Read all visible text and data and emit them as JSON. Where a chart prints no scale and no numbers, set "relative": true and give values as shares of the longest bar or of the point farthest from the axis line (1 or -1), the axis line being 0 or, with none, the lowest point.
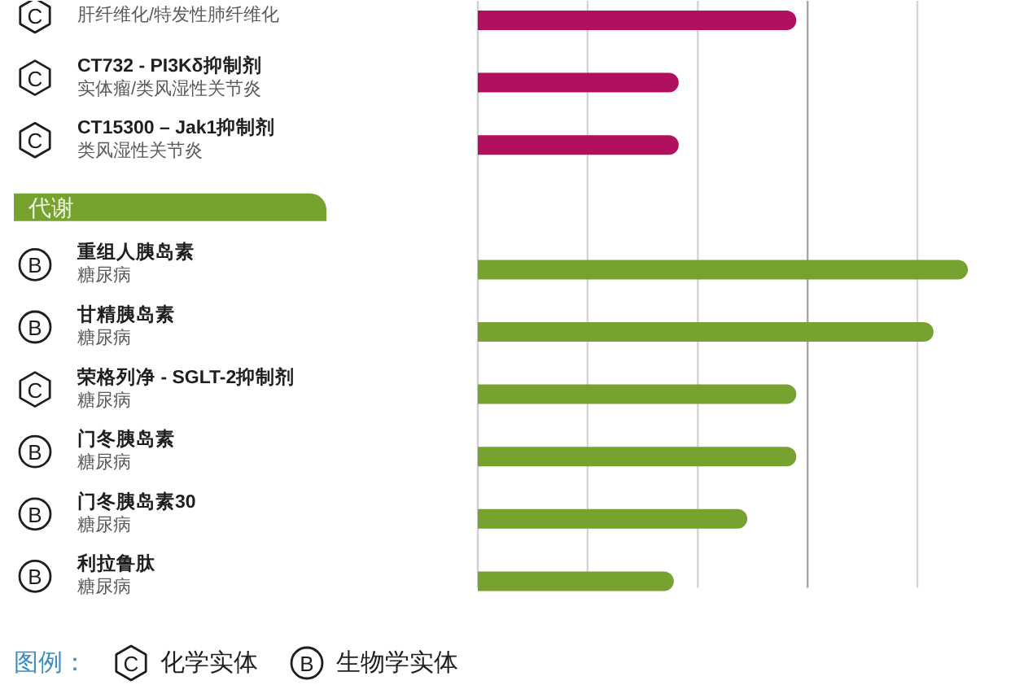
{
  "chart_data": {
    "type": "bar",
    "orientation": "horizontal",
    "relative": true,
    "categories": [
      null,
      "CT732 - PI3Kδ抑制剂",
      "CT15300 – Jak1抑制剂",
      null,
      "重组人胰岛素",
      "甘精胰岛素",
      "荣格列净 - SGLT-2抑制剂",
      "门冬胰岛素",
      "门冬胰岛素30",
      "利拉鲁肽"
    ],
    "values": [
      0.65,
      0.41,
      0.41,
      null,
      1,
      0.93,
      0.65,
      0.65,
      0.55,
      0.4
    ],
    "colors": [
      "#b0105e",
      "#b0105e",
      "#b0105e",
      "#77a22f",
      "#77a22f",
      "#77a22f",
      "#77a22f",
      "#77a22f",
      "#77a22f",
      "#77a22f"
    ],
    "ref_lines": [
      {
        "axis": "x",
        "value": 0.224,
        "color": "#d4d4d4"
      },
      {
        "axis": "x",
        "value": 0.449,
        "color": "#d4d4d4"
      },
      {
        "axis": "x",
        "value": 0.673,
        "color": "#a6a6a6"
      },
      {
        "axis": "x",
        "value": 0.897,
        "color": "#d4d4d4"
      }
    ],
    "annotations": [
      "C",
      "肝纤维化/特发性肺纤维化",
      "C",
      "实体瘤/类风湿性关节炎",
      "C",
      "类风湿性关节炎",
      "B",
      "糖尿病",
      "B",
      "糖尿病",
      "C",
      "糖尿病",
      "B",
      "糖尿病",
      "B",
      "糖尿病",
      "B",
      "糖尿病",
      "代谢",
      "图例：",
      "C",
      "化学实体",
      "B",
      "生物学实体"
    ]
  }
}
